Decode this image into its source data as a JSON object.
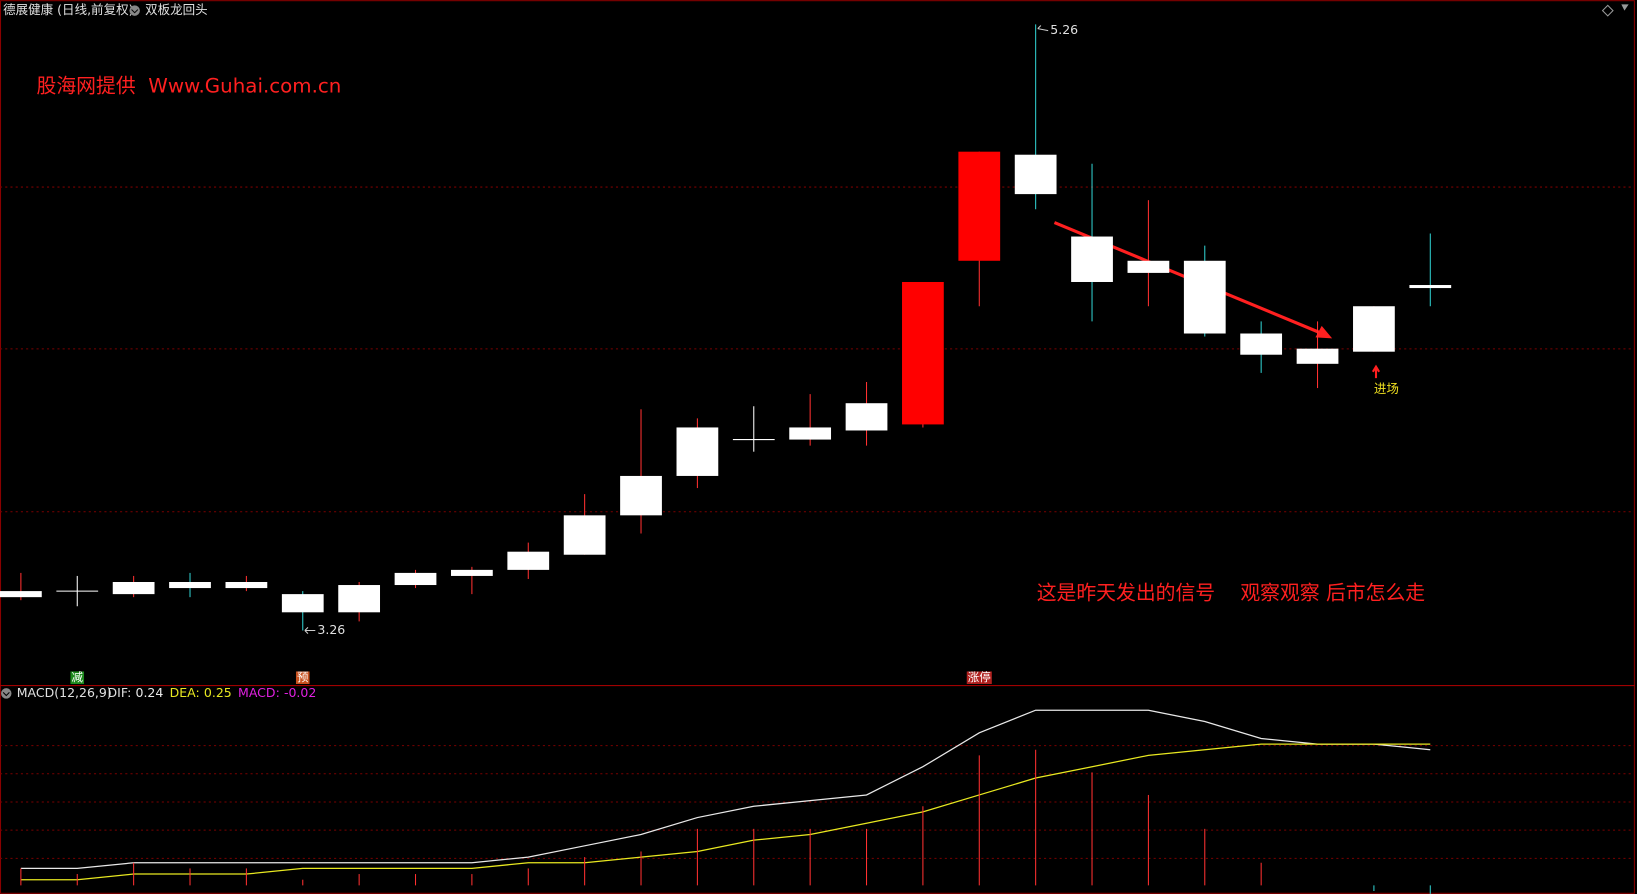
{
  "chart_data": [
    {
      "type": "candlestick",
      "title": "德展健康 (日线,前复权)",
      "indicator": "双板龙回头",
      "watermark": "股海网提供  Www.Guhai.com.cn",
      "annotation": "这是昨天发出的信号    观察观察 后市怎么走",
      "entry_label": "进场",
      "signals": [
        "减",
        "预",
        "涨停"
      ],
      "signal_colors": [
        "#1e8a1e",
        "#c8501e",
        "#b0201e"
      ],
      "up_color": "#ff3030",
      "down_color": "#30d0d0",
      "flat_color": "#ffffff",
      "body_colors": [
        "#ffffff",
        "#ffffff",
        "#ffffff",
        "#ffffff",
        "#ffffff",
        "#ffffff",
        "#ffffff",
        "#ffffff",
        "#ffffff",
        "#ffffff",
        "#ffffff",
        "#ffffff",
        "#ffffff",
        "#ffffff",
        "#ffffff",
        "#ffffff",
        "#ff0000",
        "#ff0000",
        "#ffffff",
        "#ffffff",
        "#ffffff",
        "#ffffff",
        "#ffffff",
        "#ffffff",
        "#ffffff",
        "#ffffff"
      ],
      "open": [
        3.37,
        3.39,
        3.38,
        3.42,
        3.4,
        3.38,
        3.32,
        3.41,
        3.44,
        3.46,
        3.51,
        3.64,
        3.77,
        3.89,
        3.89,
        3.92,
        3.94,
        4.48,
        4.83,
        4.56,
        4.44,
        4.48,
        4.24,
        4.14,
        4.18,
        4.4
      ],
      "high": [
        3.45,
        3.44,
        3.44,
        3.45,
        3.44,
        3.39,
        3.42,
        3.46,
        3.47,
        3.55,
        3.71,
        3.99,
        3.96,
        4.0,
        4.04,
        4.08,
        4.41,
        4.84,
        5.26,
        4.8,
        4.68,
        4.53,
        4.28,
        4.28,
        4.33,
        4.57
      ],
      "low": [
        3.36,
        3.34,
        3.37,
        3.37,
        3.39,
        3.26,
        3.29,
        3.4,
        3.38,
        3.43,
        3.51,
        3.58,
        3.73,
        3.85,
        3.87,
        3.87,
        3.93,
        4.33,
        4.65,
        4.28,
        4.33,
        4.23,
        4.11,
        4.06,
        4.18,
        4.33
      ],
      "close": [
        3.39,
        3.39,
        3.42,
        3.4,
        3.42,
        3.32,
        3.41,
        3.45,
        3.46,
        3.52,
        3.64,
        3.77,
        3.93,
        3.89,
        3.93,
        4.01,
        4.41,
        4.84,
        4.7,
        4.41,
        4.48,
        4.24,
        4.17,
        4.19,
        4.33,
        4.39
      ],
      "ylim": [
        3.08,
        5.34
      ]
    },
    {
      "type": "line",
      "title": "MACD(12,26,9)",
      "series": [
        {
          "name": "DIF:",
          "color": "#e8e8e8",
          "values": [
            0.03,
            0.03,
            0.04,
            0.04,
            0.04,
            0.04,
            0.04,
            0.04,
            0.04,
            0.05,
            0.07,
            0.09,
            0.12,
            0.14,
            0.15,
            0.16,
            0.21,
            0.27,
            0.31,
            0.31,
            0.31,
            0.29,
            0.26,
            0.25,
            0.25,
            0.24
          ]
        },
        {
          "name": "DEA:",
          "color": "#e8e820",
          "values": [
            0.01,
            0.01,
            0.02,
            0.02,
            0.02,
            0.03,
            0.03,
            0.03,
            0.03,
            0.04,
            0.04,
            0.05,
            0.06,
            0.08,
            0.09,
            0.11,
            0.13,
            0.16,
            0.19,
            0.21,
            0.23,
            0.24,
            0.25,
            0.25,
            0.25,
            0.25
          ]
        },
        {
          "name": "MACD:",
          "type": "bar",
          "color": "#e020e0",
          "up_color": "#ff3030",
          "down_color": "#30d0d0",
          "values": [
            0.03,
            0.02,
            0.04,
            0.03,
            0.03,
            0.01,
            0.02,
            0.02,
            0.02,
            0.03,
            0.05,
            0.06,
            0.1,
            0.1,
            0.1,
            0.1,
            0.14,
            0.23,
            0.24,
            0.2,
            0.16,
            0.1,
            0.04,
            0,
            -0.01,
            -0.02
          ]
        }
      ],
      "ylim": [
        -0.015,
        0.325
      ]
    }
  ]
}
